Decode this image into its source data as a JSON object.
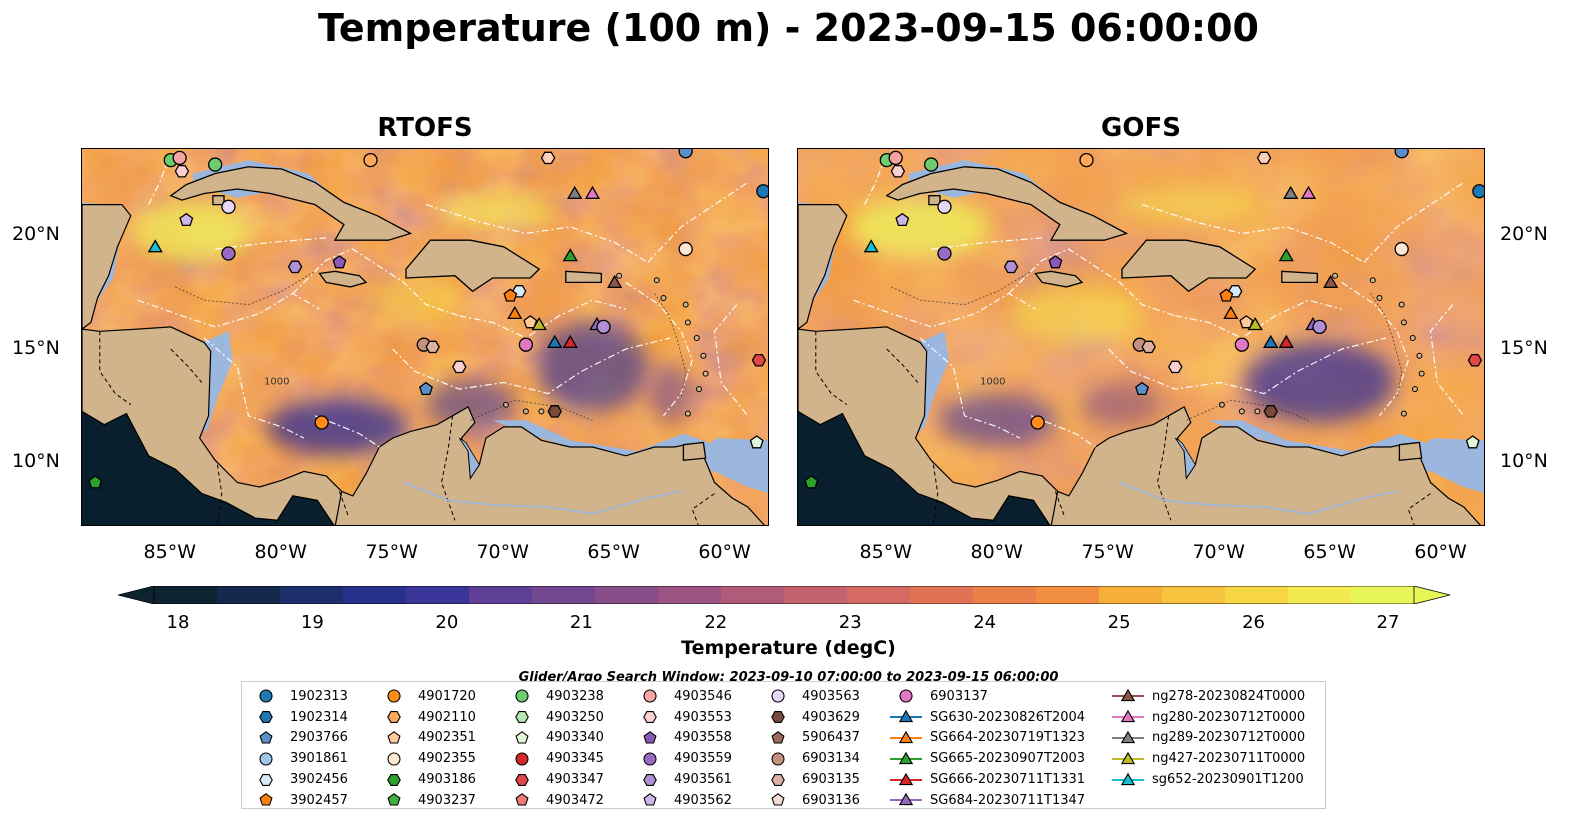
{
  "title": "Temperature (100 m) - 2023-09-15 06:00:00",
  "panels": [
    {
      "name": "RTOFS"
    },
    {
      "name": "GOFS"
    }
  ],
  "lat_labels": [
    "20°N",
    "15°N",
    "10°N"
  ],
  "lon_labels": [
    "85°W",
    "80°W",
    "75°W",
    "70°W",
    "65°W",
    "60°W"
  ],
  "colorbar": {
    "label": "Temperature (degC)",
    "ticks": [
      "18",
      "19",
      "20",
      "21",
      "22",
      "23",
      "24",
      "25",
      "26",
      "27"
    ],
    "colors": [
      "#0d2330",
      "#13284a",
      "#1c2e6b",
      "#27318a",
      "#393599",
      "#4a3a9a",
      "#5e3f95",
      "#734690",
      "#874d88",
      "#9b5381",
      "#b05b79",
      "#c4626f",
      "#d46a63",
      "#e07356",
      "#eb8049",
      "#f18e3f",
      "#f39e3a",
      "#f5b03a",
      "#f6c33e",
      "#f7d643",
      "#f3ea52",
      "#e9f65a"
    ]
  },
  "contour_labels": [
    "1000"
  ],
  "legend": {
    "title": "Glider/Argo Search Window: 2023-09-10 07:00:00 to 2023-09-15 06:00:00",
    "items": [
      {
        "label": "1902313",
        "marker": "circle",
        "color": "#1f77b4"
      },
      {
        "label": "1902314",
        "marker": "hexagon",
        "color": "#1f77b4"
      },
      {
        "label": "2903766",
        "marker": "pentagon",
        "color": "#5b8fc9"
      },
      {
        "label": "3901861",
        "marker": "circle",
        "color": "#9ec6e8"
      },
      {
        "label": "3902456",
        "marker": "hexagon",
        "color": "#d6eaf8"
      },
      {
        "label": "3902457",
        "marker": "pentagon",
        "color": "#ff7f0e"
      },
      {
        "label": "4901720",
        "marker": "circle",
        "color": "#ff8c1a"
      },
      {
        "label": "4902110",
        "marker": "hexagon",
        "color": "#ffa85c"
      },
      {
        "label": "4902351",
        "marker": "pentagon",
        "color": "#ffc999"
      },
      {
        "label": "4902355",
        "marker": "circle",
        "color": "#ffe8d1"
      },
      {
        "label": "4903186",
        "marker": "hexagon",
        "color": "#2ca02c"
      },
      {
        "label": "4903237",
        "marker": "pentagon",
        "color": "#3cb043"
      },
      {
        "label": "4903238",
        "marker": "circle",
        "color": "#6dcc6d"
      },
      {
        "label": "4903250",
        "marker": "hexagon",
        "color": "#b5e8b0"
      },
      {
        "label": "4903340",
        "marker": "pentagon",
        "color": "#e2f7dc"
      },
      {
        "label": "4903345",
        "marker": "circle",
        "color": "#d62728"
      },
      {
        "label": "4903347",
        "marker": "hexagon",
        "color": "#e04848"
      },
      {
        "label": "4903472",
        "marker": "pentagon",
        "color": "#f07a7a"
      },
      {
        "label": "4903546",
        "marker": "circle",
        "color": "#f5a3a3"
      },
      {
        "label": "4903553",
        "marker": "hexagon",
        "color": "#fbd0d0"
      },
      {
        "label": "4903558",
        "marker": "pentagon",
        "color": "#8c58b8"
      },
      {
        "label": "4903559",
        "marker": "circle",
        "color": "#9a6bc4"
      },
      {
        "label": "4903561",
        "marker": "hexagon",
        "color": "#b08fd6"
      },
      {
        "label": "4903562",
        "marker": "pentagon",
        "color": "#cdb5e8"
      },
      {
        "label": "4903563",
        "marker": "circle",
        "color": "#e6d8f5"
      },
      {
        "label": "4903629",
        "marker": "hexagon",
        "color": "#7a4a3a"
      },
      {
        "label": "5906437",
        "marker": "pentagon",
        "color": "#9c6b5a"
      },
      {
        "label": "6903134",
        "marker": "circle",
        "color": "#c4917e"
      },
      {
        "label": "6903135",
        "marker": "hexagon",
        "color": "#dcb3a3"
      },
      {
        "label": "6903136",
        "marker": "pentagon",
        "color": "#f5dcd2"
      },
      {
        "label": "6903137",
        "marker": "circle",
        "color": "#e377c2"
      },
      {
        "label": "SG630-20230826T2004",
        "marker": "triangle",
        "color": "#1f77b4"
      },
      {
        "label": "SG664-20230719T1323",
        "marker": "triangle",
        "color": "#ff7f0e"
      },
      {
        "label": "SG665-20230907T2003",
        "marker": "triangle",
        "color": "#2ca02c"
      },
      {
        "label": "SG666-20230711T1331",
        "marker": "triangle",
        "color": "#d62728"
      },
      {
        "label": "SG684-20230711T1347",
        "marker": "triangle",
        "color": "#9467bd"
      },
      {
        "label": "ng278-20230824T0000",
        "marker": "triangle",
        "color": "#8c564b"
      },
      {
        "label": "ng280-20230712T0000",
        "marker": "triangle",
        "color": "#e377c2"
      },
      {
        "label": "ng289-20230712T0000",
        "marker": "triangle",
        "color": "#7f7f7f"
      },
      {
        "label": "ng427-20230711T0000",
        "marker": "triangle",
        "color": "#bcbd22"
      },
      {
        "label": "sg652-20230901T1200",
        "marker": "triangle",
        "color": "#17becf"
      }
    ]
  },
  "map_extent": {
    "lon": [
      -89,
      -58
    ],
    "lat": [
      7,
      24
    ]
  },
  "observations": [
    {
      "lon": -85.0,
      "lat": 23.5,
      "marker": "circle",
      "color": "#6dcc6d"
    },
    {
      "lon": -84.6,
      "lat": 23.6,
      "marker": "circle",
      "color": "#f5a3a3"
    },
    {
      "lon": -84.5,
      "lat": 23.0,
      "marker": "hexagon",
      "color": "#fbd0d0"
    },
    {
      "lon": -83.0,
      "lat": 23.3,
      "marker": "circle",
      "color": "#6dcc6d"
    },
    {
      "lon": -76.0,
      "lat": 23.5,
      "marker": "circle",
      "color": "#ffa85c"
    },
    {
      "lon": -68.0,
      "lat": 23.6,
      "marker": "hexagon",
      "color": "#ffd0b8"
    },
    {
      "lon": -61.8,
      "lat": 23.9,
      "marker": "circle",
      "color": "#5b8fc9"
    },
    {
      "lon": -58.3,
      "lat": 22.1,
      "marker": "circle",
      "color": "#1f77b4"
    },
    {
      "lon": -84.3,
      "lat": 20.8,
      "marker": "pentagon",
      "color": "#cdb5e8"
    },
    {
      "lon": -82.4,
      "lat": 21.4,
      "marker": "circle",
      "color": "#e6d8f5"
    },
    {
      "lon": -85.7,
      "lat": 19.6,
      "marker": "triangle",
      "color": "#17becf"
    },
    {
      "lon": -82.4,
      "lat": 19.3,
      "marker": "circle",
      "color": "#9a6bc4"
    },
    {
      "lon": -79.4,
      "lat": 18.7,
      "marker": "hexagon",
      "color": "#b08fd6"
    },
    {
      "lon": -77.4,
      "lat": 18.9,
      "marker": "pentagon",
      "color": "#8c58b8"
    },
    {
      "lon": -66.8,
      "lat": 22.0,
      "marker": "triangle",
      "color": "#7f7f7f"
    },
    {
      "lon": -66.0,
      "lat": 22.0,
      "marker": "triangle",
      "color": "#e377c2"
    },
    {
      "lon": -61.8,
      "lat": 19.5,
      "marker": "circle",
      "color": "#ffe8d1"
    },
    {
      "lon": -67.0,
      "lat": 19.2,
      "marker": "triangle",
      "color": "#2ca02c"
    },
    {
      "lon": -65.0,
      "lat": 18.0,
      "marker": "triangle",
      "color": "#8c564b"
    },
    {
      "lon": -69.3,
      "lat": 17.6,
      "marker": "hexagon",
      "color": "#d6eaf8"
    },
    {
      "lon": -69.7,
      "lat": 17.4,
      "marker": "pentagon",
      "color": "#ff7f0e"
    },
    {
      "lon": -69.5,
      "lat": 16.6,
      "marker": "triangle",
      "color": "#ff7f0e"
    },
    {
      "lon": -68.8,
      "lat": 16.2,
      "marker": "pentagon",
      "color": "#ffc999"
    },
    {
      "lon": -68.4,
      "lat": 16.1,
      "marker": "triangle",
      "color": "#bcbd22"
    },
    {
      "lon": -65.8,
      "lat": 16.1,
      "marker": "triangle",
      "color": "#9467bd"
    },
    {
      "lon": -65.5,
      "lat": 16.0,
      "marker": "circle",
      "color": "#b08fd6"
    },
    {
      "lon": -67.7,
      "lat": 15.3,
      "marker": "triangle",
      "color": "#1f77b4"
    },
    {
      "lon": -67.0,
      "lat": 15.3,
      "marker": "triangle",
      "color": "#d62728"
    },
    {
      "lon": -69.0,
      "lat": 15.2,
      "marker": "circle",
      "color": "#e377c2"
    },
    {
      "lon": -73.6,
      "lat": 15.2,
      "marker": "circle",
      "color": "#c4917e"
    },
    {
      "lon": -73.2,
      "lat": 15.1,
      "marker": "hexagon",
      "color": "#dcb3a3"
    },
    {
      "lon": -72.0,
      "lat": 14.2,
      "marker": "hexagon",
      "color": "#fbd0d0"
    },
    {
      "lon": -73.5,
      "lat": 13.2,
      "marker": "pentagon",
      "color": "#5b8fc9"
    },
    {
      "lon": -78.2,
      "lat": 11.7,
      "marker": "circle",
      "color": "#ff8c1a"
    },
    {
      "lon": -67.7,
      "lat": 12.2,
      "marker": "hexagon",
      "color": "#7a4a3a"
    },
    {
      "lon": -58.5,
      "lat": 14.5,
      "marker": "hexagon",
      "color": "#e04848"
    },
    {
      "lon": -58.6,
      "lat": 10.8,
      "marker": "pentagon",
      "color": "#e2f7dc"
    },
    {
      "lon": -88.4,
      "lat": 9.0,
      "marker": "pentagon",
      "color": "#2ca02c"
    }
  ]
}
